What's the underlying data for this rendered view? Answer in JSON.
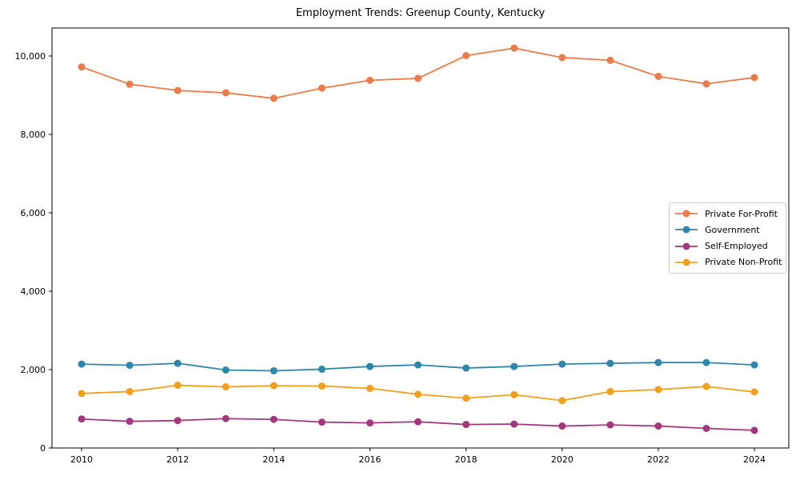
{
  "title": "Employment Trends: Greenup County, Kentucky",
  "chart_data": {
    "type": "line",
    "x": [
      2010,
      2011,
      2012,
      2013,
      2014,
      2015,
      2016,
      2017,
      2018,
      2019,
      2020,
      2021,
      2022,
      2023,
      2024
    ],
    "series": [
      {
        "name": "Private For-Profit",
        "color": "#E87D4B",
        "values": [
          9720,
          9280,
          9120,
          9060,
          8920,
          9180,
          9380,
          9430,
          10010,
          10200,
          9960,
          9890,
          9480,
          9290,
          9450
        ]
      },
      {
        "name": "Government",
        "color": "#2F86A8",
        "values": [
          2140,
          2110,
          2160,
          1990,
          1970,
          2010,
          2080,
          2120,
          2040,
          2080,
          2140,
          2160,
          2180,
          2180,
          2120
        ]
      },
      {
        "name": "Self-Employed",
        "color": "#A2397E",
        "values": [
          740,
          680,
          700,
          750,
          730,
          660,
          640,
          670,
          600,
          610,
          560,
          590,
          560,
          500,
          450
        ]
      },
      {
        "name": "Private Non-Profit",
        "color": "#F0A01E",
        "values": [
          1390,
          1440,
          1600,
          1560,
          1590,
          1580,
          1520,
          1370,
          1270,
          1360,
          1210,
          1440,
          1490,
          1570,
          1430
        ]
      }
    ],
    "title": "Employment Trends: Greenup County, Kentucky",
    "xlabel": "",
    "ylabel": "",
    "ylim": [
      0,
      10714
    ],
    "y_ticks": [
      0,
      2000,
      4000,
      6000,
      8000,
      10000
    ],
    "y_tick_labels": [
      "0",
      "2,000",
      "4,000",
      "6,000",
      "8,000",
      "10,000"
    ],
    "x_ticks": [
      2010,
      2012,
      2014,
      2016,
      2018,
      2020,
      2022,
      2024
    ],
    "grid": false,
    "legend_position": "center-right",
    "axis_color": "#000000",
    "background_color": "#ffffff"
  }
}
